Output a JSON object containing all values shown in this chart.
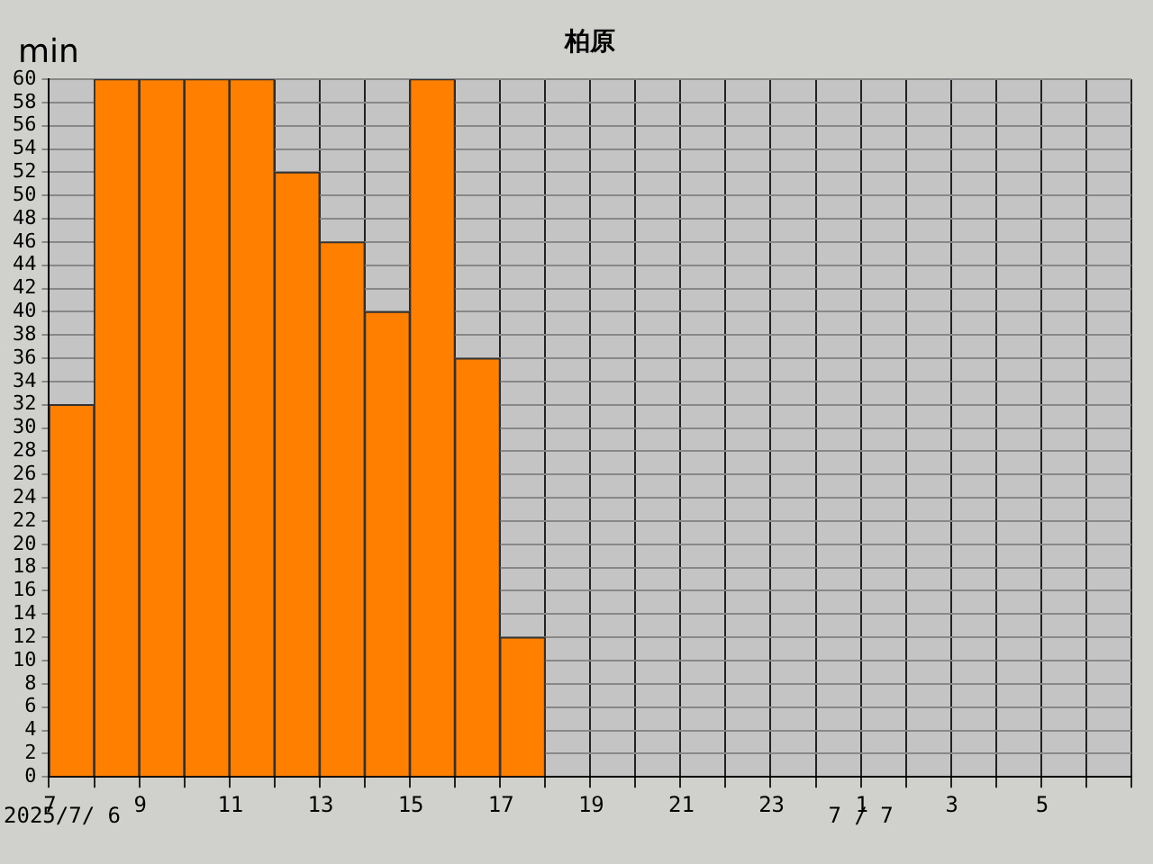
{
  "chart_data": {
    "type": "bar",
    "title": "柏原",
    "ylabel": "min",
    "categories": [
      "7",
      null,
      "9",
      null,
      "11",
      null,
      "13",
      null,
      "15",
      null,
      "17",
      null,
      "19",
      null,
      "21",
      null,
      "23",
      null,
      "1",
      null,
      "3",
      null,
      "5",
      null
    ],
    "values": [
      32,
      60,
      60,
      60,
      60,
      52,
      46,
      40,
      60,
      36,
      12,
      null,
      null,
      null,
      null,
      null,
      null,
      null,
      null,
      null,
      null,
      null,
      null,
      null
    ],
    "color": "#ff8000",
    "ylim": [
      0,
      60
    ],
    "yticks": [
      0,
      2,
      4,
      6,
      8,
      10,
      12,
      14,
      16,
      18,
      20,
      22,
      24,
      26,
      28,
      30,
      32,
      34,
      36,
      38,
      40,
      42,
      44,
      46,
      48,
      50,
      52,
      54,
      56,
      58,
      60
    ],
    "grid": true,
    "annotations": [
      "2025/7/ 6",
      "7 / 7"
    ]
  }
}
